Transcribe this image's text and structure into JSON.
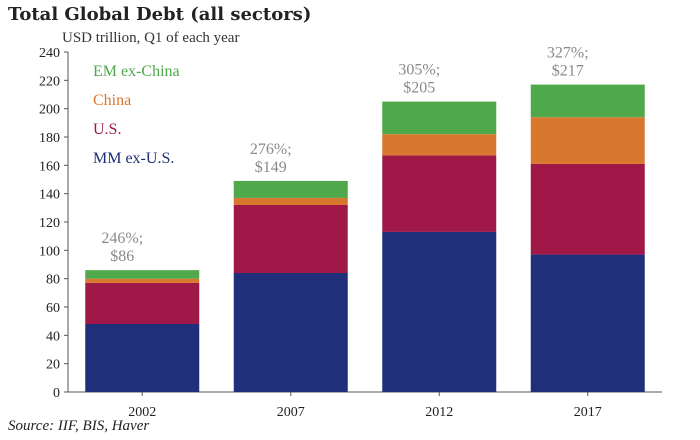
{
  "title": "Total Global Debt (all sectors)",
  "source": "Source: IIF, BIS, Haver",
  "chart_data": {
    "type": "bar",
    "stacked": true,
    "title": "Total Global Debt (all sectors)",
    "unit_label": "USD trillion, Q1 of each year",
    "categories": [
      "2002",
      "2007",
      "2012",
      "2017"
    ],
    "ylim": [
      0,
      240
    ],
    "yticks": [
      0,
      20,
      40,
      60,
      80,
      100,
      120,
      140,
      160,
      180,
      200,
      220,
      240
    ],
    "grid": false,
    "legend_position": "top-left",
    "series": [
      {
        "name": "MM ex-U.S.",
        "color": "#1f2f7a",
        "values": [
          48,
          84,
          113,
          97
        ]
      },
      {
        "name": "U.S.",
        "color": "#a01848",
        "values": [
          29,
          48,
          54,
          64
        ]
      },
      {
        "name": "China",
        "color": "#d8782e",
        "values": [
          3,
          5,
          15,
          33
        ]
      },
      {
        "name": "EM ex-China",
        "color": "#4fa84a",
        "values": [
          6,
          12,
          23,
          23
        ]
      }
    ],
    "legend_order": [
      "EM ex-China",
      "China",
      "U.S.",
      "MM ex-U.S."
    ],
    "bar_labels": [
      {
        "line1": "246%;",
        "line2": "$86"
      },
      {
        "line1": "276%;",
        "line2": "$149"
      },
      {
        "line1": "305%;",
        "line2": "$205"
      },
      {
        "line1": "327%;",
        "line2": "$217"
      }
    ]
  }
}
